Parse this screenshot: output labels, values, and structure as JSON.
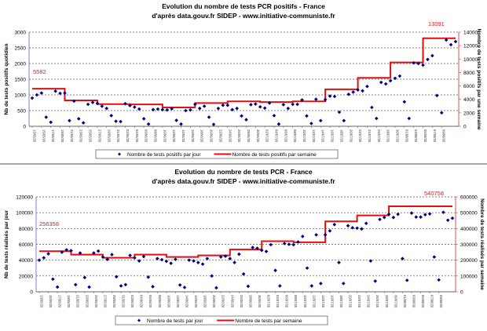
{
  "chart_data": [
    {
      "type": "line",
      "title": "Evolution du nombre de tests PCR positifs - France",
      "subtitle": "d'après data.gouv.fr SIDEP - www.initiative-communiste.fr",
      "ylabel": "Nb de tests positifs quotidien",
      "y2label": "Nombre de tests positifs par une semaine",
      "ylim": [
        0,
        3000
      ],
      "yticks": [
        0,
        500,
        1000,
        1500,
        2000,
        2500,
        3000
      ],
      "y2lim": [
        0,
        14000
      ],
      "y2ticks": [
        0,
        2000,
        4000,
        6000,
        8000,
        10000,
        12000,
        14000
      ],
      "grid": true,
      "legend_position": "bottom",
      "annotations": [
        "5582",
        "13091"
      ],
      "series": [
        {
          "name": "Nombre de tests positifs par jour",
          "kind": "scatter",
          "axis": "left",
          "color": "#000080",
          "values": [
            900,
            1000,
            1060,
            290,
            130,
            1120,
            1050,
            1060,
            180,
            800,
            240,
            110,
            700,
            760,
            730,
            640,
            570,
            340,
            160,
            150,
            720,
            660,
            610,
            550,
            240,
            70,
            530,
            550,
            530,
            520,
            560,
            190,
            70,
            500,
            520,
            700,
            570,
            640,
            290,
            60,
            570,
            670,
            670,
            530,
            570,
            330,
            210,
            690,
            710,
            620,
            580,
            740,
            340,
            70,
            690,
            570,
            700,
            700,
            840,
            330,
            90,
            860,
            180,
            850,
            960,
            950,
            450,
            180,
            1020,
            1090,
            1160,
            1130,
            1270,
            600,
            250,
            1400,
            1350,
            1450,
            1530,
            1600,
            780,
            250,
            2020,
            2000,
            1950,
            2130,
            2250,
            980,
            430,
            2750,
            2600,
            2700
          ]
        },
        {
          "name": "Nombre de tests positifs par semaine",
          "kind": "step",
          "axis": "right",
          "color": "#e01010",
          "values": [
            5582,
            3850,
            3300,
            3250,
            2800,
            3450,
            3700,
            3600,
            3700,
            5500,
            7200,
            9500,
            13091
          ]
        }
      ]
    },
    {
      "type": "line",
      "title": "Evolution du nombre de tests PCR - France",
      "subtitle": "d'après data.gouv.fr SIDEP - www.initiative-communiste.fr",
      "ylabel": "Nb de tests réalisés par jour",
      "y2label": "Nombre de tests réalisés par semaine",
      "ylim": [
        0,
        120000
      ],
      "yticks": [
        0,
        20000,
        40000,
        60000,
        80000,
        100000,
        120000
      ],
      "y2lim": [
        0,
        600000
      ],
      "y2ticks": [
        0,
        100000,
        200000,
        300000,
        400000,
        500000,
        600000
      ],
      "grid": true,
      "legend_position": "bottom",
      "annotations": [
        "256358",
        "540758"
      ],
      "series": [
        {
          "name": "Nombre de tests par jour",
          "kind": "scatter",
          "axis": "left",
          "color": "#000080",
          "values": [
            40000,
            43000,
            48000,
            16000,
            6000,
            50000,
            53000,
            52000,
            9000,
            49000,
            18000,
            6000,
            49000,
            51500,
            44000,
            41000,
            47000,
            19000,
            7500,
            9000,
            46000,
            43000,
            39000,
            44500,
            18500,
            6500,
            42000,
            40500,
            38500,
            36000,
            41000,
            8500,
            5500,
            40000,
            39000,
            37000,
            35000,
            42000,
            20000,
            5000,
            44000,
            45000,
            42000,
            37000,
            47500,
            22500,
            7000,
            56000,
            55000,
            52500,
            51000,
            59500,
            27000,
            7500,
            61000,
            60000,
            59500,
            63000,
            70000,
            30000,
            7500,
            72000,
            10500,
            72000,
            77000,
            85000,
            37000,
            10500,
            83500,
            81000,
            80500,
            79500,
            86500,
            39000,
            13500,
            91500,
            94000,
            98000,
            94000,
            98000,
            42000,
            14500,
            99500,
            94500,
            94500,
            97500,
            98500,
            44000,
            15000,
            100500,
            90500,
            93000
          ]
        },
        {
          "name": "Nombre de tests par semaine",
          "kind": "step",
          "axis": "right",
          "color": "#e01010",
          "values": [
            256358,
            235000,
            215000,
            235000,
            220000,
            230000,
            267000,
            320000,
            313000,
            445000,
            483000,
            540758,
            540758
          ]
        }
      ]
    }
  ],
  "x_tick_labels": [
    "13/05/20",
    "15/05/20",
    "17/05/20",
    "19/05/20",
    "21/05/20",
    "23/05/20",
    "25/05/20",
    "27/05/20",
    "29/05/20",
    "31/05/20",
    "02/06/20",
    "04/06/20",
    "06/06/20",
    "08/06/20",
    "10/06/20",
    "12/06/20",
    "14/06/20",
    "16/06/20",
    "18/06/20",
    "20/06/20",
    "22/06/20",
    "24/06/20",
    "26/06/20",
    "28/06/20",
    "30/06/20",
    "02/07/20",
    "04/07/20",
    "06/07/20",
    "08/07/20",
    "10/07/20",
    "12/07/20",
    "14/07/20",
    "16/07/20",
    "18/07/20",
    "20/07/20",
    "22/07/20",
    "24/07/20",
    "26/07/20",
    "28/07/20",
    "30/07/20",
    "01/08/20",
    "03/08/20",
    "05/08/20",
    "07/08/20",
    "09/08/20"
  ]
}
